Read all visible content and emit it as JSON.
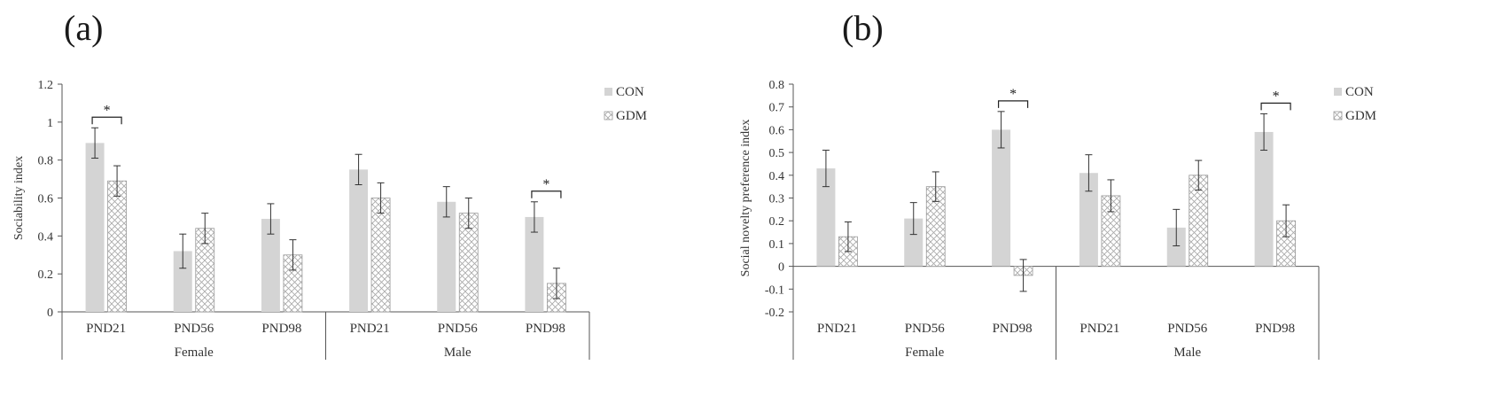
{
  "panels": {
    "a_label": "(a)",
    "b_label": "(b)"
  },
  "chart_data": [
    {
      "type": "bar",
      "ylabel": "Sociability index",
      "ylim": [
        0,
        1.2
      ],
      "yticks": [
        0,
        0.2,
        0.4,
        0.6,
        0.8,
        1,
        1.2
      ],
      "categories": [
        "PND21",
        "PND56",
        "PND98",
        "PND21",
        "PND56",
        "PND98"
      ],
      "groups": [
        "Female",
        "Male"
      ],
      "series": [
        {
          "name": "CON",
          "values": [
            0.89,
            0.32,
            0.49,
            0.75,
            0.58,
            0.5
          ],
          "errors": [
            0.08,
            0.09,
            0.08,
            0.08,
            0.08,
            0.08
          ],
          "color": "#d4d4d4"
        },
        {
          "name": "GDM",
          "values": [
            0.69,
            0.44,
            0.3,
            0.6,
            0.52,
            0.15
          ],
          "errors": [
            0.08,
            0.08,
            0.08,
            0.08,
            0.08,
            0.08
          ],
          "color": "#ffffff"
        }
      ],
      "significance": [
        {
          "category_index": 0,
          "label": "*"
        },
        {
          "category_index": 5,
          "label": "*"
        }
      ],
      "legend": "right"
    },
    {
      "type": "bar",
      "ylabel": "Social novelty preference index",
      "ylim": [
        -0.2,
        0.8
      ],
      "yticks": [
        -0.2,
        -0.1,
        0,
        0.1,
        0.2,
        0.3,
        0.4,
        0.5,
        0.6,
        0.7,
        0.8
      ],
      "categories": [
        "PND21",
        "PND56",
        "PND98",
        "PND21",
        "PND56",
        "PND98"
      ],
      "groups": [
        "Female",
        "Male"
      ],
      "series": [
        {
          "name": "CON",
          "values": [
            0.43,
            0.21,
            0.6,
            0.41,
            0.17,
            0.59
          ],
          "errors": [
            0.08,
            0.07,
            0.08,
            0.08,
            0.08,
            0.08
          ],
          "color": "#d4d4d4"
        },
        {
          "name": "GDM",
          "values": [
            0.13,
            0.35,
            -0.04,
            0.31,
            0.4,
            0.2
          ],
          "errors": [
            0.065,
            0.065,
            0.07,
            0.07,
            0.065,
            0.07
          ],
          "color": "#ffffff"
        }
      ],
      "significance": [
        {
          "category_index": 2,
          "label": "*"
        },
        {
          "category_index": 5,
          "label": "*"
        }
      ],
      "legend": "right"
    }
  ]
}
